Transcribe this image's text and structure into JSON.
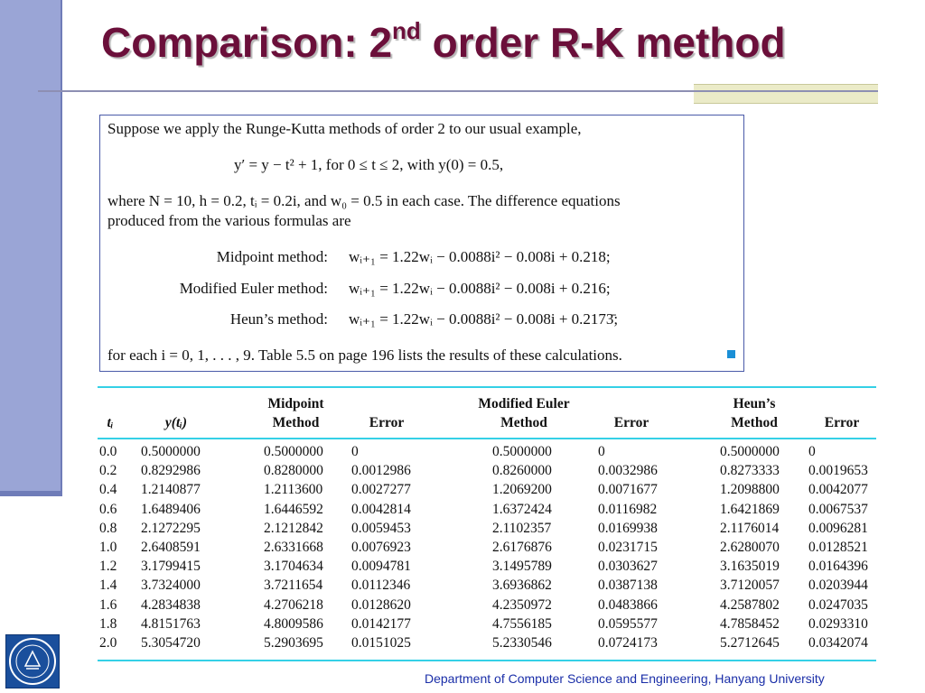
{
  "slide": {
    "title_main": "Comparison: 2",
    "title_sup": "nd",
    "title_rest": " order R-K method",
    "footer": "Department of Computer Science and Engineering, Hanyang University"
  },
  "problem": {
    "intro": "Suppose we apply the Runge-Kutta methods of order 2 to our usual example,",
    "ode": "y′ = y − t² + 1,     for 0 ≤ t ≤ 2,     with y(0) = 0.5,",
    "where_line": "where N = 10, h = 0.2, tᵢ = 0.2i, and w₀ = 0.5 in each case. The difference equations",
    "produced_line": "produced from the various formulas are",
    "methods": [
      {
        "label": "Midpoint method:",
        "eq": "wᵢ₊₁ = 1.22wᵢ − 0.0088i² − 0.008i + 0.218;"
      },
      {
        "label": "Modified Euler method:",
        "eq": "wᵢ₊₁ = 1.22wᵢ − 0.0088i² − 0.008i + 0.216;"
      },
      {
        "label": "Heun’s method:",
        "eq": "wᵢ₊₁ = 1.22wᵢ − 0.0088i² − 0.008i + 0.2173̄;"
      }
    ],
    "closing": "for each i = 0, 1, . . . , 9. Table 5.5 on page 196 lists the results of these calculations."
  },
  "table": {
    "headers": {
      "t": "tᵢ",
      "y": "y(tᵢ)",
      "mid_method": [
        "Midpoint",
        "Method"
      ],
      "mid_error": "Error",
      "me_method": [
        "Modified Euler",
        "Method"
      ],
      "me_error": "Error",
      "heun_method": [
        "Heun’s",
        "Method"
      ],
      "heun_error": "Error"
    },
    "rows": [
      [
        "0.0",
        "0.5000000",
        "0.5000000",
        "0",
        "0.5000000",
        "0",
        "0.5000000",
        "0"
      ],
      [
        "0.2",
        "0.8292986",
        "0.8280000",
        "0.0012986",
        "0.8260000",
        "0.0032986",
        "0.8273333",
        "0.0019653"
      ],
      [
        "0.4",
        "1.2140877",
        "1.2113600",
        "0.0027277",
        "1.2069200",
        "0.0071677",
        "1.2098800",
        "0.0042077"
      ],
      [
        "0.6",
        "1.6489406",
        "1.6446592",
        "0.0042814",
        "1.6372424",
        "0.0116982",
        "1.6421869",
        "0.0067537"
      ],
      [
        "0.8",
        "2.1272295",
        "2.1212842",
        "0.0059453",
        "2.1102357",
        "0.0169938",
        "2.1176014",
        "0.0096281"
      ],
      [
        "1.0",
        "2.6408591",
        "2.6331668",
        "0.0076923",
        "2.6176876",
        "0.0231715",
        "2.6280070",
        "0.0128521"
      ],
      [
        "1.2",
        "3.1799415",
        "3.1704634",
        "0.0094781",
        "3.1495789",
        "0.0303627",
        "3.1635019",
        "0.0164396"
      ],
      [
        "1.4",
        "3.7324000",
        "3.7211654",
        "0.0112346",
        "3.6936862",
        "0.0387138",
        "3.7120057",
        "0.0203944"
      ],
      [
        "1.6",
        "4.2834838",
        "4.2706218",
        "0.0128620",
        "4.2350972",
        "0.0483866",
        "4.2587802",
        "0.0247035"
      ],
      [
        "1.8",
        "4.8151763",
        "4.8009586",
        "0.0142177",
        "4.7556185",
        "0.0595577",
        "4.7858452",
        "0.0293310"
      ],
      [
        "2.0",
        "5.3054720",
        "5.2903695",
        "0.0151025",
        "5.2330546",
        "0.0724173",
        "5.2712645",
        "0.0342074"
      ]
    ]
  },
  "colors": {
    "title": "#6b0f3a",
    "left_bar": "#9aa5d6",
    "accent_box": "#ebebc8",
    "table_rule": "#35d0e6",
    "footer": "#1a2ea8",
    "qed": "#1a8fd6"
  },
  "icons": {
    "logo": "university-seal-icon",
    "end_of_example": "square-bullet-icon"
  }
}
